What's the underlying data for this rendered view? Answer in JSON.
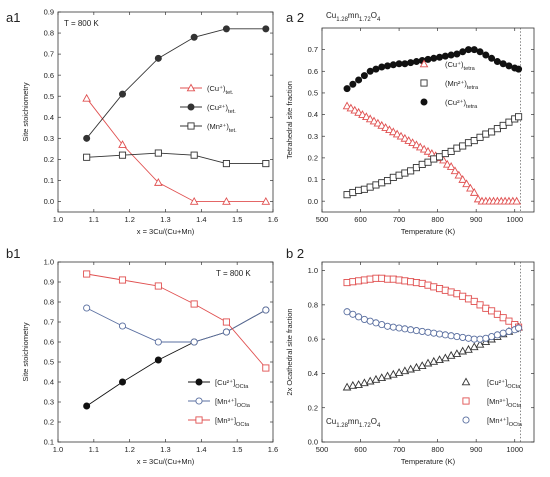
{
  "chart_data": [
    {
      "id": "a1",
      "type": "line",
      "panel_label": "a1",
      "annotation": "T = 800 K",
      "xlabel": "x = 3Cu/(Cu+Mn)",
      "ylabel": "Site stoichiometry",
      "xlim": [
        1.0,
        1.6
      ],
      "ylim": [
        -0.05,
        0.9
      ],
      "xticks": [
        1.0,
        1.1,
        1.2,
        1.3,
        1.4,
        1.5,
        1.6
      ],
      "yticks": [
        0.0,
        0.1,
        0.2,
        0.3,
        0.4,
        0.5,
        0.6,
        0.7,
        0.8,
        0.9
      ],
      "x_tick_labels": [
        "1.0",
        "1.1",
        "1.2",
        "1.3",
        "1.4",
        "1.5",
        "1.6"
      ],
      "y_tick_labels": [
        "0.0",
        "0.1",
        "0.2",
        "0.3",
        "0.4",
        "0.5",
        "0.6",
        "0.7",
        "0.8",
        "0.9"
      ],
      "legend_position": "right-middle",
      "series": [
        {
          "name": "(Cu⁺)tet.",
          "color": "#e05050",
          "marker": "triangle-open",
          "x": [
            1.08,
            1.18,
            1.28,
            1.38,
            1.47,
            1.58
          ],
          "y": [
            0.49,
            0.27,
            0.09,
            0.0,
            0.0,
            0.0
          ]
        },
        {
          "name": "(Cu²⁺)tet.",
          "color": "#333333",
          "marker": "circle-filled",
          "x": [
            1.08,
            1.18,
            1.28,
            1.38,
            1.47,
            1.58
          ],
          "y": [
            0.3,
            0.51,
            0.68,
            0.78,
            0.82,
            0.82
          ]
        },
        {
          "name": "(Mn²⁺)tet.",
          "color": "#333333",
          "marker": "square-open",
          "x": [
            1.08,
            1.18,
            1.28,
            1.38,
            1.47,
            1.58
          ],
          "y": [
            0.21,
            0.22,
            0.23,
            0.22,
            0.18,
            0.18
          ]
        }
      ]
    },
    {
      "id": "a2",
      "type": "scatter",
      "panel_label": "a 2",
      "annotation": "Cu1.28mn1.72O4",
      "xlabel": "Temperature (K)",
      "ylabel": "Tetrahedral site fraction",
      "xlim": [
        500,
        1050
      ],
      "ylim": [
        -0.05,
        0.8
      ],
      "xticks": [
        500,
        600,
        700,
        800,
        900,
        1000
      ],
      "yticks": [
        0.0,
        0.1,
        0.2,
        0.3,
        0.4,
        0.5,
        0.6,
        0.7
      ],
      "x_tick_labels": [
        "500",
        "600",
        "700",
        "800",
        "900",
        "1000"
      ],
      "y_tick_labels": [
        "0.0",
        "0.1",
        "0.2",
        "0.3",
        "0.4",
        "0.5",
        "0.6",
        "0.7"
      ],
      "vline": 1015,
      "legend_position": "center",
      "series": [
        {
          "name": "(Cu⁺)tetra",
          "color": "#e05050",
          "marker": "triangle-open",
          "x": [
            565,
            575,
            585,
            595,
            605,
            615,
            625,
            635,
            645,
            655,
            665,
            675,
            685,
            695,
            705,
            715,
            725,
            735,
            745,
            755,
            765,
            775,
            785,
            795,
            805,
            815,
            825,
            835,
            845,
            855,
            865,
            875,
            885,
            895,
            905,
            915,
            925,
            935,
            945,
            955,
            965,
            975,
            985,
            995,
            1005
          ],
          "y": [
            0.44,
            0.43,
            0.42,
            0.41,
            0.4,
            0.39,
            0.38,
            0.37,
            0.36,
            0.35,
            0.34,
            0.33,
            0.32,
            0.31,
            0.3,
            0.29,
            0.28,
            0.27,
            0.26,
            0.25,
            0.24,
            0.23,
            0.22,
            0.21,
            0.2,
            0.19,
            0.17,
            0.16,
            0.14,
            0.12,
            0.1,
            0.08,
            0.06,
            0.04,
            0.01,
            0.0,
            0.0,
            0.0,
            0.0,
            0.0,
            0.0,
            0.0,
            0.0,
            0.0,
            0.0
          ]
        },
        {
          "name": "(Mn²⁺)tetra",
          "color": "#333333",
          "marker": "square-open",
          "x": [
            565,
            580,
            595,
            610,
            625,
            640,
            655,
            670,
            685,
            700,
            715,
            730,
            745,
            760,
            775,
            790,
            805,
            820,
            835,
            850,
            865,
            880,
            895,
            910,
            925,
            940,
            955,
            970,
            985,
            1000,
            1010
          ],
          "y": [
            0.03,
            0.04,
            0.05,
            0.055,
            0.065,
            0.075,
            0.085,
            0.095,
            0.11,
            0.12,
            0.13,
            0.14,
            0.155,
            0.17,
            0.18,
            0.195,
            0.205,
            0.22,
            0.23,
            0.245,
            0.255,
            0.27,
            0.28,
            0.295,
            0.31,
            0.32,
            0.335,
            0.35,
            0.365,
            0.38,
            0.39
          ]
        },
        {
          "name": "(Cu²⁺)tetra",
          "color": "#111111",
          "marker": "circle-filled",
          "x": [
            565,
            580,
            595,
            610,
            625,
            640,
            655,
            670,
            685,
            700,
            715,
            730,
            745,
            760,
            775,
            790,
            805,
            820,
            835,
            850,
            865,
            880,
            895,
            910,
            925,
            940,
            955,
            970,
            985,
            1000,
            1010
          ],
          "y": [
            0.52,
            0.54,
            0.56,
            0.58,
            0.6,
            0.61,
            0.62,
            0.625,
            0.63,
            0.635,
            0.635,
            0.64,
            0.645,
            0.65,
            0.655,
            0.66,
            0.665,
            0.67,
            0.675,
            0.68,
            0.69,
            0.7,
            0.7,
            0.69,
            0.675,
            0.66,
            0.645,
            0.635,
            0.625,
            0.615,
            0.61
          ]
        }
      ]
    },
    {
      "id": "b1",
      "type": "line",
      "panel_label": "b1",
      "annotation": "T = 800 K",
      "xlabel": "x = 3Cu/(Cu+Mn)",
      "ylabel": "Site stoichiometry",
      "xlim": [
        1.0,
        1.6
      ],
      "ylim": [
        0.1,
        1.0
      ],
      "xticks": [
        1.0,
        1.1,
        1.2,
        1.3,
        1.4,
        1.5,
        1.6
      ],
      "yticks": [
        0.1,
        0.2,
        0.3,
        0.4,
        0.5,
        0.6,
        0.7,
        0.8,
        0.9,
        1.0
      ],
      "x_tick_labels": [
        "1.0",
        "1.1",
        "1.2",
        "1.3",
        "1.4",
        "1.5",
        "1.6"
      ],
      "y_tick_labels": [
        "0.1",
        "0.2",
        "0.3",
        "0.4",
        "0.5",
        "0.6",
        "0.7",
        "0.8",
        "0.9",
        "1.0"
      ],
      "legend_position": "bottom-right",
      "series": [
        {
          "name": "[Cu²⁺]OCta",
          "color": "#111111",
          "marker": "circle-filled",
          "x": [
            1.08,
            1.18,
            1.28,
            1.38,
            1.47,
            1.58
          ],
          "y": [
            0.28,
            0.4,
            0.51,
            0.6,
            0.65,
            0.76
          ]
        },
        {
          "name": "[Mn⁴⁺]OCta",
          "color": "#5a6fa0",
          "marker": "circle-open",
          "x": [
            1.08,
            1.18,
            1.28,
            1.38,
            1.47,
            1.58
          ],
          "y": [
            0.77,
            0.68,
            0.6,
            0.6,
            0.65,
            0.76
          ]
        },
        {
          "name": "[Mn³⁺]OCta",
          "color": "#e05050",
          "marker": "square-open",
          "x": [
            1.08,
            1.18,
            1.28,
            1.38,
            1.47,
            1.58
          ],
          "y": [
            0.94,
            0.91,
            0.88,
            0.79,
            0.7,
            0.47
          ]
        }
      ]
    },
    {
      "id": "b2",
      "type": "scatter",
      "panel_label": "b 2",
      "annotation": "Cu1.28mn1.72O4",
      "xlabel": "Temperature (K)",
      "ylabel": "2x Ocathedral site fraction",
      "xlim": [
        500,
        1050
      ],
      "ylim": [
        0.0,
        1.05
      ],
      "xticks": [
        500,
        600,
        700,
        800,
        900,
        1000
      ],
      "yticks": [
        0.0,
        0.2,
        0.4,
        0.6,
        0.8,
        1.0
      ],
      "x_tick_labels": [
        "500",
        "600",
        "700",
        "800",
        "900",
        "1000"
      ],
      "y_tick_labels": [
        "0.0",
        "0.2",
        "0.4",
        "0.6",
        "0.8",
        "1.0"
      ],
      "vline": 1015,
      "legend_position": "bottom-right",
      "series": [
        {
          "name": "[Cu²⁺]OCta",
          "color": "#333333",
          "marker": "triangle-open",
          "x": [
            565,
            580,
            595,
            610,
            625,
            640,
            655,
            670,
            685,
            700,
            715,
            730,
            745,
            760,
            775,
            790,
            805,
            820,
            835,
            850,
            865,
            880,
            895,
            910,
            925,
            940,
            955,
            970,
            985,
            1000,
            1010
          ],
          "y": [
            0.32,
            0.33,
            0.335,
            0.345,
            0.355,
            0.365,
            0.375,
            0.385,
            0.395,
            0.405,
            0.415,
            0.425,
            0.435,
            0.445,
            0.46,
            0.47,
            0.48,
            0.49,
            0.505,
            0.515,
            0.53,
            0.54,
            0.555,
            0.57,
            0.585,
            0.6,
            0.615,
            0.63,
            0.645,
            0.66,
            0.67
          ]
        },
        {
          "name": "[Mn³⁺]OCta",
          "color": "#e05050",
          "marker": "square-open",
          "x": [
            565,
            580,
            595,
            610,
            625,
            640,
            655,
            670,
            685,
            700,
            715,
            730,
            745,
            760,
            775,
            790,
            805,
            820,
            835,
            850,
            865,
            880,
            895,
            910,
            925,
            940,
            955,
            970,
            985,
            1000,
            1010
          ],
          "y": [
            0.93,
            0.935,
            0.94,
            0.945,
            0.95,
            0.955,
            0.955,
            0.95,
            0.95,
            0.945,
            0.94,
            0.935,
            0.93,
            0.925,
            0.915,
            0.905,
            0.895,
            0.885,
            0.875,
            0.865,
            0.85,
            0.835,
            0.82,
            0.8,
            0.78,
            0.765,
            0.745,
            0.725,
            0.705,
            0.685,
            0.67
          ]
        },
        {
          "name": "[Mn⁴⁺]OCta",
          "color": "#5a6fa0",
          "marker": "circle-open",
          "x": [
            565,
            580,
            595,
            610,
            625,
            640,
            655,
            670,
            685,
            700,
            715,
            730,
            745,
            760,
            775,
            790,
            805,
            820,
            835,
            850,
            865,
            880,
            895,
            910,
            925,
            940,
            955,
            970,
            985,
            1000,
            1010
          ],
          "y": [
            0.76,
            0.745,
            0.73,
            0.715,
            0.705,
            0.695,
            0.685,
            0.675,
            0.67,
            0.665,
            0.66,
            0.655,
            0.65,
            0.645,
            0.64,
            0.635,
            0.63,
            0.625,
            0.62,
            0.615,
            0.61,
            0.605,
            0.6,
            0.6,
            0.605,
            0.615,
            0.625,
            0.635,
            0.645,
            0.655,
            0.665
          ]
        }
      ]
    }
  ]
}
